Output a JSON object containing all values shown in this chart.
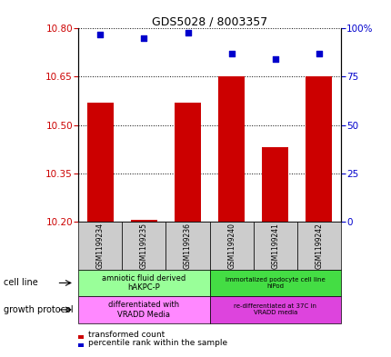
{
  "title": "GDS5028 / 8003357",
  "samples": [
    "GSM1199234",
    "GSM1199235",
    "GSM1199236",
    "GSM1199240",
    "GSM1199241",
    "GSM1199242"
  ],
  "bar_values": [
    10.57,
    10.205,
    10.57,
    10.65,
    10.43,
    10.65
  ],
  "bar_base": 10.2,
  "dot_values": [
    97,
    95,
    98,
    87,
    84,
    87
  ],
  "ylim_left": [
    10.2,
    10.8
  ],
  "ylim_right": [
    0,
    100
  ],
  "yticks_left": [
    10.2,
    10.35,
    10.5,
    10.65,
    10.8
  ],
  "yticks_right": [
    0,
    25,
    50,
    75,
    100
  ],
  "ytick_labels_right": [
    "0",
    "25",
    "50",
    "75",
    "100%"
  ],
  "bar_color": "#cc0000",
  "dot_color": "#0000cc",
  "cell_line_labels": [
    "amniotic fluid derived\nhAKPC-P",
    "immortalized podocyte cell line\nhIPod"
  ],
  "cell_line_colors": [
    "#99ff99",
    "#44dd44"
  ],
  "growth_protocol_labels": [
    "differentiated with\nVRADD Media",
    "re-differentiated at 37C in\nVRADD media"
  ],
  "growth_protocol_colors": [
    "#ff88ff",
    "#dd44dd"
  ],
  "group1_samples": [
    0,
    1,
    2
  ],
  "group2_samples": [
    3,
    4,
    5
  ],
  "legend_red_label": "transformed count",
  "legend_blue_label": "percentile rank within the sample",
  "left_label_cell_line": "cell line",
  "left_label_growth": "growth protocol",
  "left_ytick_color": "#cc0000",
  "right_ytick_color": "#0000cc"
}
